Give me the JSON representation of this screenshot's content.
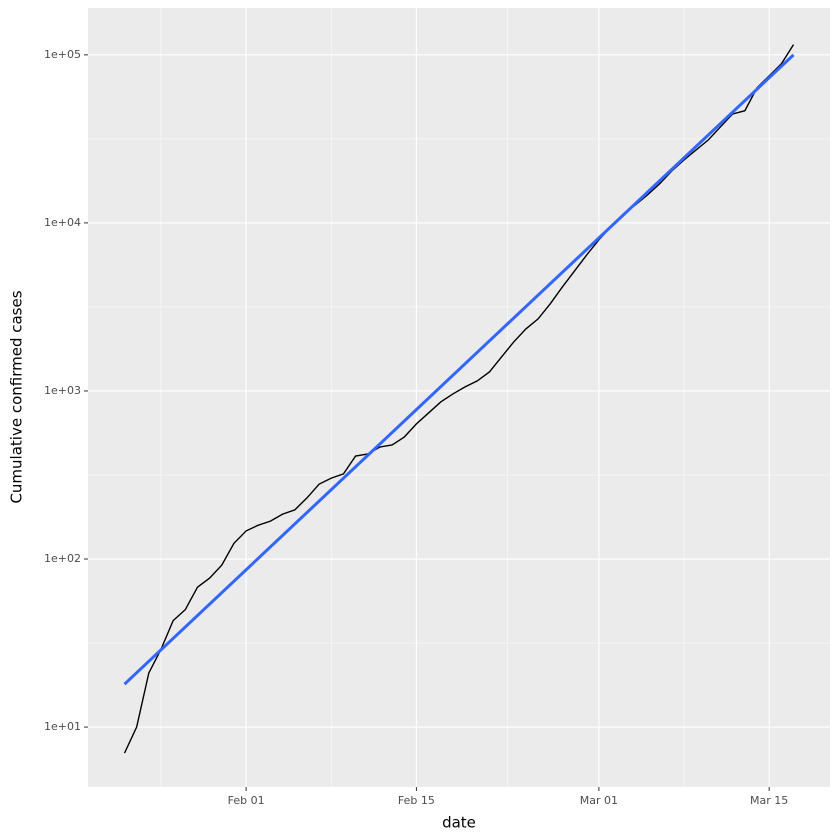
{
  "chart_data": {
    "type": "line",
    "xlabel": "date",
    "ylabel": "Cumulative confirmed cases",
    "log_y": true,
    "grid": true,
    "xlim": [
      "Jan 19",
      "Mar 20"
    ],
    "xticks": [
      "Feb 01",
      "Feb 15",
      "Mar 01",
      "Mar 15"
    ],
    "ylim": [
      4.4,
      190000
    ],
    "yticks": [
      {
        "value": 10,
        "label": "1e+01"
      },
      {
        "value": 100,
        "label": "1e+02"
      },
      {
        "value": 1000,
        "label": "1e+03"
      },
      {
        "value": 10000,
        "label": "1e+04"
      },
      {
        "value": 100000,
        "label": "1e+05"
      }
    ],
    "series": [
      {
        "color": "#000000",
        "x": [
          "Jan 22",
          "Jan 23",
          "Jan 24",
          "Jan 25",
          "Jan 26",
          "Jan 27",
          "Jan 28",
          "Jan 29",
          "Jan 30",
          "Jan 31",
          "Feb 01",
          "Feb 02",
          "Feb 03",
          "Feb 04",
          "Feb 05",
          "Feb 06",
          "Feb 07",
          "Feb 08",
          "Feb 09",
          "Feb 10",
          "Feb 11",
          "Feb 12",
          "Feb 13",
          "Feb 14",
          "Feb 15",
          "Feb 16",
          "Feb 17",
          "Feb 18",
          "Feb 19",
          "Feb 20",
          "Feb 21",
          "Feb 22",
          "Feb 23",
          "Feb 24",
          "Feb 25",
          "Feb 26",
          "Feb 27",
          "Feb 28",
          "Feb 29",
          "Mar 01",
          "Mar 02",
          "Mar 03",
          "Mar 04",
          "Mar 05",
          "Mar 06",
          "Mar 07",
          "Mar 08",
          "Mar 09",
          "Mar 10",
          "Mar 11",
          "Mar 12",
          "Mar 13",
          "Mar 14",
          "Mar 15",
          "Mar 16",
          "Mar 17"
        ],
        "values": [
          7,
          10,
          21,
          29,
          43,
          50,
          68,
          77,
          92,
          124,
          147,
          159,
          168,
          185,
          196,
          231,
          279,
          303,
          321,
          410,
          422,
          464,
          477,
          532,
          637,
          740,
          860,
          960,
          1057,
          1148,
          1298,
          1594,
          1958,
          2340,
          2685,
          3300,
          4160,
          5180,
          6450,
          7930,
          9470,
          11300,
          12800,
          14700,
          17100,
          20400,
          23700,
          27200,
          31200,
          37300,
          44500,
          46500,
          63700,
          75000,
          88300,
          115000
        ]
      },
      {
        "color": "#3366ff",
        "x": [
          "Jan 22",
          "Mar 17"
        ],
        "values": [
          18,
          100000
        ]
      }
    ]
  }
}
